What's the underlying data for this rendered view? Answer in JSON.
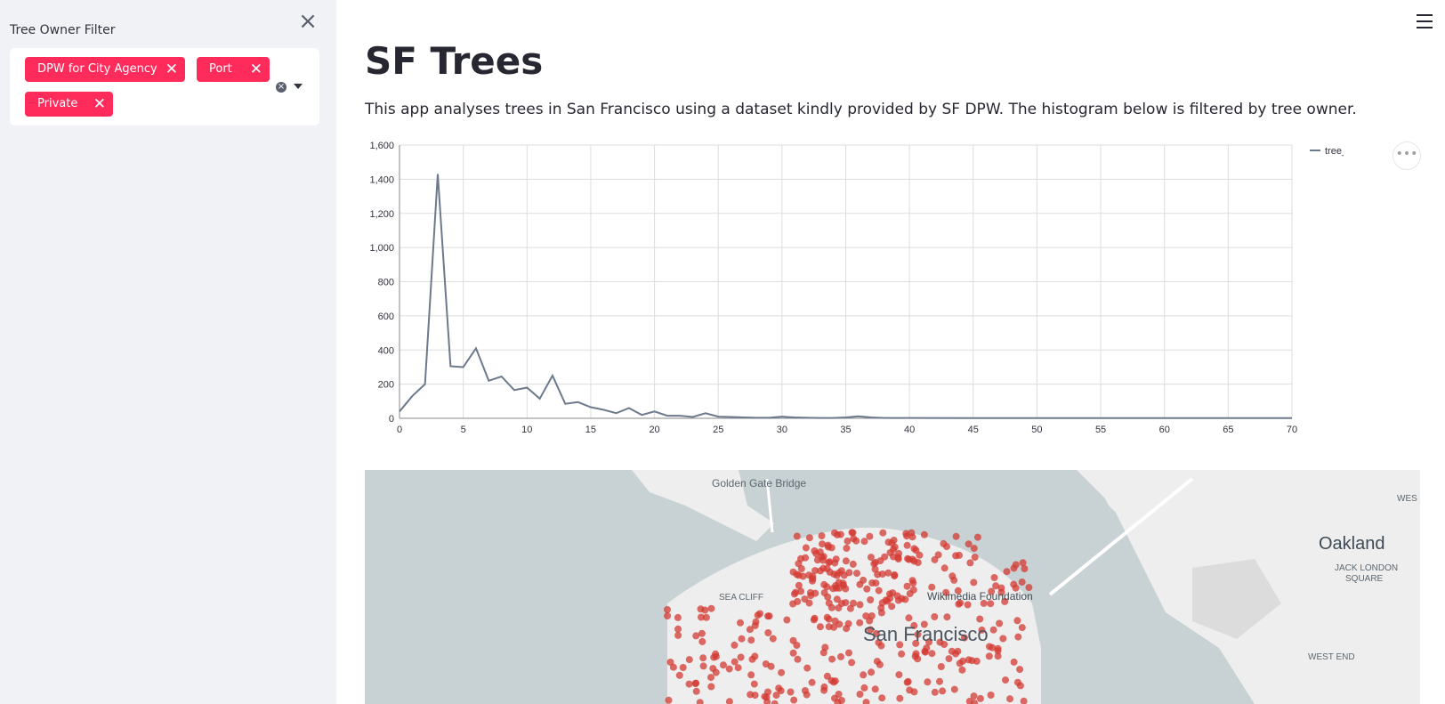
{
  "sidebar": {
    "filter_label": "Tree Owner Filter",
    "tags": [
      "DPW for City Agency",
      "Port",
      "Private"
    ],
    "close_icon": "close-icon",
    "clear_icon": "clear-all-icon",
    "dropdown_icon": "chevron-down-icon"
  },
  "header": {
    "menu_icon": "hamburger-menu-icon"
  },
  "main": {
    "title": "SF Trees",
    "intro": "This app analyses trees in San Francisco using a dataset kindly provided by SF DPW. The histogram below is filtered by tree owner."
  },
  "colors": {
    "accent": "#ff2b5b",
    "sidebar_bg": "#f0f2f6",
    "line": "#6c7a8c",
    "dots": "#d33a31"
  },
  "chart_data": {
    "type": "line",
    "x": [
      0,
      1,
      2,
      3,
      4,
      5,
      6,
      7,
      8,
      9,
      10,
      11,
      12,
      13,
      14,
      15,
      16,
      17,
      18,
      19,
      20,
      21,
      22,
      23,
      24,
      25,
      26,
      27,
      28,
      29,
      30,
      31,
      32,
      33,
      34,
      35,
      36,
      37,
      38,
      39,
      40,
      45,
      50,
      55,
      60,
      65,
      70
    ],
    "series": [
      {
        "name": "tree_count",
        "values": [
          40,
          130,
          200,
          1430,
          305,
          300,
          410,
          220,
          245,
          165,
          180,
          115,
          250,
          85,
          95,
          65,
          50,
          30,
          60,
          20,
          40,
          15,
          15,
          8,
          30,
          10,
          8,
          5,
          3,
          3,
          10,
          5,
          3,
          2,
          2,
          5,
          12,
          5,
          2,
          2,
          2,
          1,
          1,
          1,
          1,
          1,
          1
        ]
      }
    ],
    "xlim": [
      0,
      70
    ],
    "ylim": [
      0,
      1600
    ],
    "x_ticks": [
      0,
      5,
      10,
      15,
      20,
      25,
      30,
      35,
      40,
      45,
      50,
      55,
      60,
      65,
      70
    ],
    "y_ticks": [
      0,
      200,
      400,
      600,
      800,
      1000,
      1200,
      1400,
      1600
    ],
    "y_tick_labels": [
      "0",
      "200",
      "400",
      "600",
      "800",
      "1,000",
      "1,200",
      "1,400",
      "1,600"
    ],
    "legend": "top-right",
    "grid": true
  },
  "map": {
    "labels": [
      {
        "text": "Golden Gate Bridge",
        "key": "golden_gate"
      },
      {
        "text": "Oakland",
        "key": "oakland"
      },
      {
        "text": "San Francisco",
        "key": "sf"
      },
      {
        "text": "Wikimedia Foundation",
        "key": "wiki"
      },
      {
        "text": "SEA CLIFF",
        "key": "seacliff"
      },
      {
        "text": "JACK LONDON",
        "key": "jl1"
      },
      {
        "text": "SQUARE",
        "key": "jl2"
      },
      {
        "text": "WEST END",
        "key": "westend"
      },
      {
        "text": "WES",
        "key": "wes"
      }
    ]
  }
}
